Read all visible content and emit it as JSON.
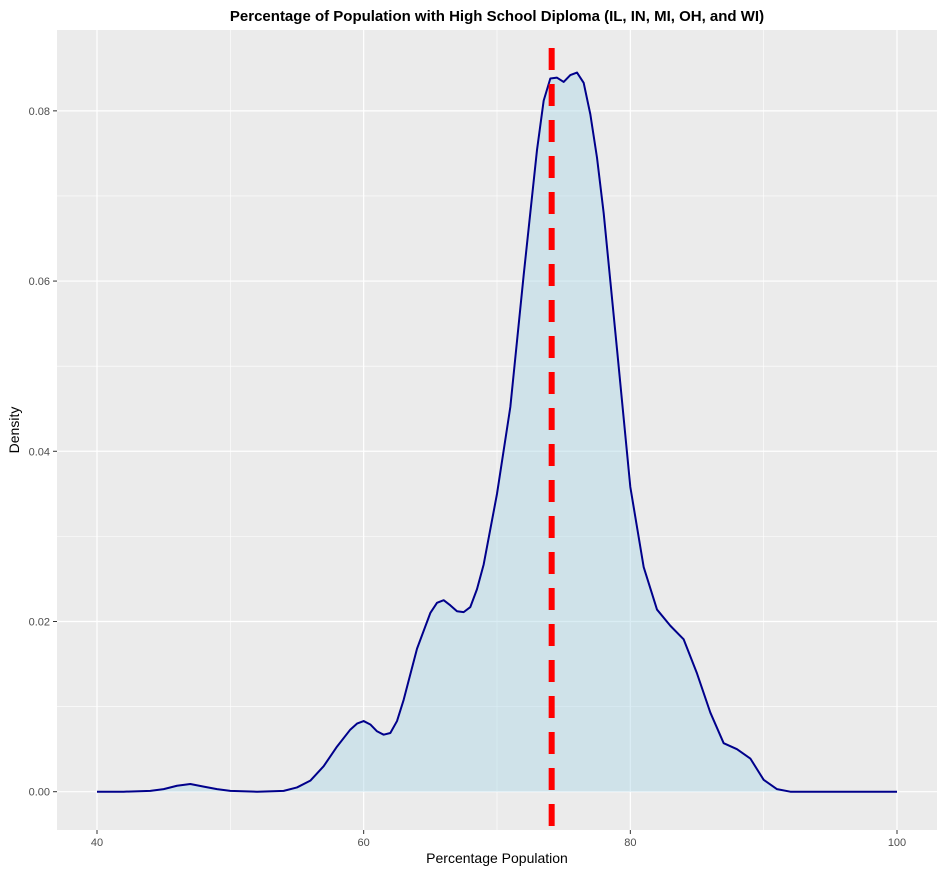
{
  "chart_data": {
    "type": "area",
    "title": "Percentage of Population with High School Diploma (IL, IN, MI, OH, and WI)",
    "xlabel": "Percentage Population",
    "ylabel": "Density",
    "xlim": [
      37,
      103
    ],
    "ylim": [
      -0.0045,
      0.0895
    ],
    "x_ticks": [
      40,
      60,
      80,
      100
    ],
    "x_tick_labels": [
      "40",
      "60",
      "80",
      "100"
    ],
    "y_ticks": [
      0,
      0.02,
      0.04,
      0.06,
      0.08
    ],
    "y_tick_labels": [
      "0.00",
      "0.02",
      "0.04",
      "0.06",
      "0.08"
    ],
    "x_minor_ticks": [
      50,
      70,
      90
    ],
    "y_minor_ticks": [
      0.01,
      0.03,
      0.05,
      0.07
    ],
    "grid": true,
    "panel_color": "#ebebeb",
    "grid_color": "#ffffff",
    "fill_color": "#add8e6",
    "line_color": "#00008b",
    "mean_line": {
      "x": 74.1,
      "color": "#ff0000",
      "style": "dashed"
    },
    "series": [
      {
        "x": [
          40,
          42,
          44,
          45,
          46,
          47,
          48,
          49,
          50,
          52,
          54,
          55,
          56,
          57,
          58,
          59,
          59.5,
          60,
          60.5,
          61,
          61.5,
          62,
          62.5,
          63,
          64,
          65,
          65.5,
          66,
          66.5,
          67,
          67.5,
          68,
          68.5,
          69,
          70,
          71,
          72,
          73,
          73.5,
          74,
          74.5,
          75,
          75.5,
          76,
          76.5,
          77,
          77.5,
          78,
          78.5,
          79,
          80,
          81,
          82,
          83,
          84,
          85,
          86,
          87,
          88,
          89,
          90,
          91,
          92,
          94,
          96,
          98,
          100
        ],
        "y": [
          0,
          0,
          0.0001,
          0.0003,
          0.0007,
          0.0009,
          0.0006,
          0.0003,
          0.0001,
          0,
          0.0001,
          0.0005,
          0.0013,
          0.003,
          0.0053,
          0.0073,
          0.008,
          0.0083,
          0.0079,
          0.0071,
          0.0067,
          0.0069,
          0.0083,
          0.0108,
          0.0168,
          0.021,
          0.0222,
          0.0225,
          0.0219,
          0.0212,
          0.0211,
          0.0217,
          0.0238,
          0.0267,
          0.035,
          0.0452,
          0.0607,
          0.0754,
          0.0812,
          0.0838,
          0.0839,
          0.0834,
          0.0842,
          0.0845,
          0.0833,
          0.0796,
          0.0745,
          0.068,
          0.06,
          0.052,
          0.0358,
          0.0264,
          0.0214,
          0.0195,
          0.0179,
          0.0139,
          0.0093,
          0.0057,
          0.005,
          0.0039,
          0.0014,
          0.0003,
          0,
          0,
          0,
          0,
          0
        ]
      }
    ]
  }
}
